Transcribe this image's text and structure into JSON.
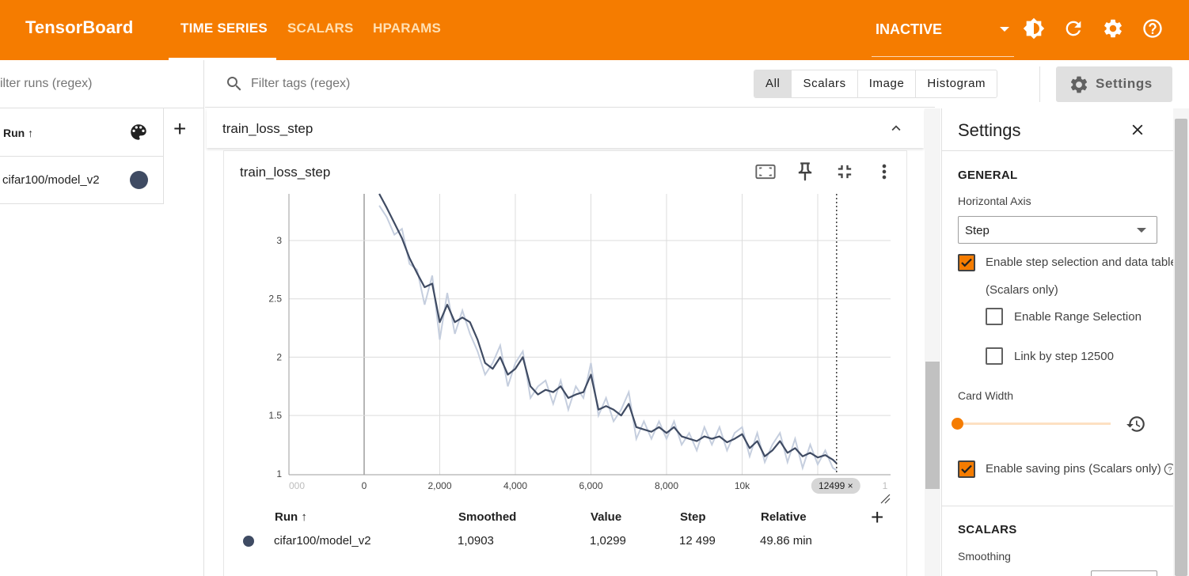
{
  "app": {
    "title": "TensorBoard"
  },
  "nav": {
    "tabs": [
      "TIME SERIES",
      "SCALARS",
      "HPARAMS"
    ],
    "active": "TIME SERIES"
  },
  "status": {
    "label": "INACTIVE"
  },
  "topicons": [
    "theme-icon",
    "refresh-icon",
    "gear-icon",
    "help-icon"
  ],
  "runs": {
    "filter_placeholder": "ilter runs (regex)",
    "header": "Run ↑",
    "items": [
      {
        "name": "cifar100/model_v2",
        "color": "#3f4b63"
      }
    ]
  },
  "tags": {
    "filter_placeholder": "Filter tags (regex)",
    "types": [
      "All",
      "Scalars",
      "Image",
      "Histogram"
    ],
    "active_type": "All",
    "settings_label": "Settings"
  },
  "group": {
    "title": "train_loss_step"
  },
  "card": {
    "title": "train_loss_step"
  },
  "chart_data": {
    "type": "line",
    "title": "train_loss_step",
    "x_tick_labels": [
      "000",
      "0",
      "2,000",
      "4,000",
      "6,000",
      "8,000",
      "10k",
      "12499 ×",
      "1"
    ],
    "y_tick_labels": [
      "3",
      "2.5",
      "2",
      "1.5",
      "1"
    ],
    "xlim": [
      -2000,
      14000
    ],
    "ylim": [
      0.97,
      3.4
    ],
    "selected_step": 12499,
    "series": [
      {
        "name": "cifar100/model_v2",
        "color": "#3f4b63",
        "raw_color": "#c5cede",
        "x": [
          400,
          600,
          800,
          1000,
          1200,
          1400,
          1600,
          1800,
          2000,
          2200,
          2400,
          2600,
          2800,
          3000,
          3200,
          3400,
          3600,
          3800,
          4000,
          4200,
          4400,
          4600,
          4800,
          5000,
          5200,
          5400,
          5600,
          5800,
          6000,
          6200,
          6400,
          6600,
          6800,
          7000,
          7200,
          7400,
          7600,
          7800,
          8000,
          8200,
          8400,
          8600,
          8800,
          9000,
          9200,
          9400,
          9600,
          9800,
          10000,
          10200,
          10400,
          10600,
          10800,
          11000,
          11200,
          11400,
          11600,
          11800,
          12000,
          12200,
          12400,
          12499
        ],
        "smoothed": [
          3.4,
          3.28,
          3.15,
          3.02,
          2.85,
          2.72,
          2.6,
          2.63,
          2.3,
          2.45,
          2.3,
          2.34,
          2.3,
          2.15,
          1.95,
          1.9,
          2.0,
          1.85,
          1.9,
          2.0,
          1.75,
          1.68,
          1.72,
          1.7,
          1.75,
          1.65,
          1.68,
          1.7,
          1.85,
          1.55,
          1.58,
          1.55,
          1.5,
          1.6,
          1.4,
          1.38,
          1.36,
          1.4,
          1.35,
          1.4,
          1.32,
          1.3,
          1.28,
          1.32,
          1.3,
          1.32,
          1.27,
          1.3,
          1.34,
          1.22,
          1.28,
          1.15,
          1.2,
          1.28,
          1.18,
          1.22,
          1.15,
          1.18,
          1.14,
          1.16,
          1.12,
          1.0903
        ],
        "values": [
          3.3,
          3.2,
          3.05,
          3.1,
          2.8,
          2.75,
          2.45,
          2.7,
          2.15,
          2.55,
          2.2,
          2.4,
          2.2,
          2.05,
          1.85,
          1.95,
          2.1,
          1.75,
          1.95,
          2.05,
          1.65,
          1.75,
          1.8,
          1.6,
          1.8,
          1.55,
          1.75,
          1.65,
          1.95,
          1.5,
          1.65,
          1.45,
          1.55,
          1.7,
          1.3,
          1.45,
          1.3,
          1.45,
          1.3,
          1.45,
          1.25,
          1.35,
          1.2,
          1.4,
          1.25,
          1.4,
          1.2,
          1.35,
          1.4,
          1.15,
          1.35,
          1.1,
          1.25,
          1.35,
          1.1,
          1.3,
          1.05,
          1.25,
          1.08,
          1.2,
          1.05,
          1.0299
        ]
      }
    ]
  },
  "data_table": {
    "headers": [
      "Run ↑",
      "Smoothed",
      "Value",
      "Step",
      "Relative"
    ],
    "row": {
      "run": "cifar100/model_v2",
      "smoothed": "1,0903",
      "value": "1,0299",
      "step": "12 499",
      "relative": "49.86 min"
    }
  },
  "settings": {
    "title": "Settings",
    "general": "GENERAL",
    "horizontal_axis_label": "Horizontal Axis",
    "horizontal_axis_value": "Step",
    "enable_step_selection": "Enable step selection and data table",
    "scalars_only": "(Scalars only)",
    "enable_range_selection": "Enable Range Selection",
    "link_by_step": "Link by step 12500",
    "card_width": "Card Width",
    "enable_saving_pins": "Enable saving pins (Scalars only)",
    "scalars_section": "SCALARS",
    "smoothing": "Smoothing"
  }
}
